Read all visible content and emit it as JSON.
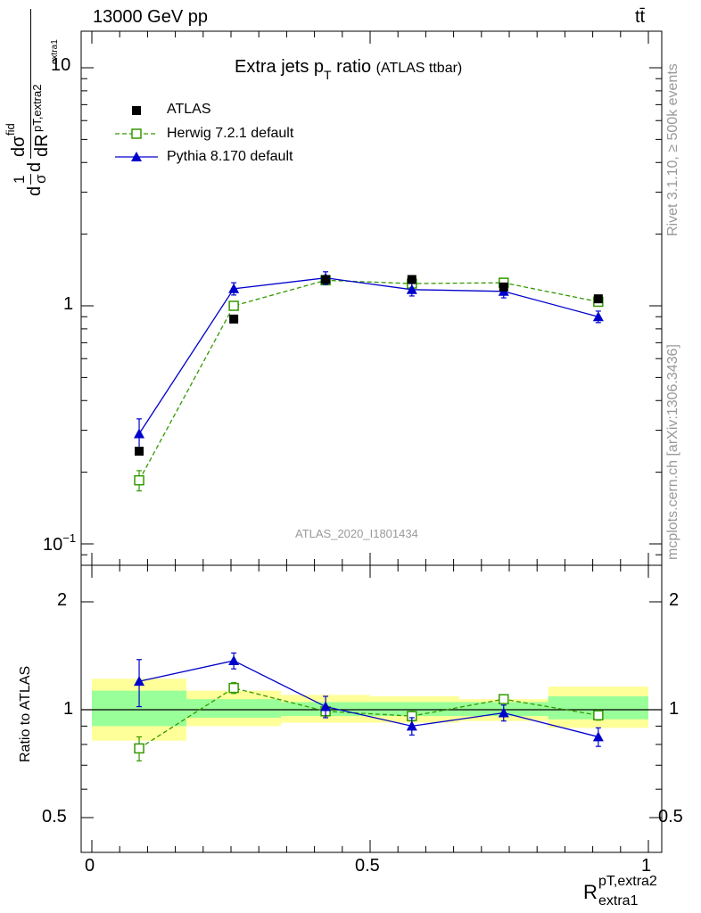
{
  "header": {
    "energy_label": "13000 GeV pp",
    "process_label": "tt̄"
  },
  "side": {
    "rivet": "Rivet 3.1.10, ≥ 500k events",
    "mcplots": "mcplots.cern.ch [arXiv:1306.3436]"
  },
  "analysis_label": "ATLAS_2020_I1801434",
  "colors": {
    "data": "#000000",
    "herwig": "#339900",
    "pythia": "#0000cc",
    "band_inner": "#99ff99",
    "band_outer": "#ffff99",
    "watermark": "#999999"
  },
  "chart_data": [
    {
      "type": "scatter",
      "title_main": "Extra jets p",
      "title_sub": "T",
      "title_tail": " ratio",
      "title_paren": "(ATLAS ttbar)",
      "ylabel_parts": [
        "d",
        "1",
        "σ",
        "d",
        "dσ",
        "fid",
        "dR",
        "pT,extra2",
        "extra1"
      ],
      "yscale": "log",
      "ylim": [
        0.085,
        14
      ],
      "yticks": [
        {
          "v": 10,
          "label": "10"
        },
        {
          "v": 1,
          "label": "1"
        },
        {
          "v": 0.1,
          "label": "10",
          "sup": "−1"
        }
      ],
      "xlim": [
        0,
        1
      ],
      "legend_position": "top-left",
      "legend": [
        "ATLAS",
        "Herwig 7.2.1 default",
        "Pythia 8.170 default"
      ],
      "x": [
        0.085,
        0.255,
        0.42,
        0.575,
        0.74,
        0.91
      ],
      "series": [
        {
          "name": "ATLAS",
          "marker": "square",
          "values": [
            0.245,
            0.88,
            1.29,
            1.29,
            1.2,
            1.07
          ],
          "err": [
            0,
            0,
            0,
            0,
            0,
            0
          ]
        },
        {
          "name": "Herwig 7.2.1 default",
          "marker": "open-square",
          "line": "dashed",
          "values": [
            0.185,
            1.0,
            1.28,
            1.24,
            1.25,
            1.04
          ],
          "err": [
            0.018,
            0.03,
            0.04,
            0.04,
            0.04,
            0.03
          ]
        },
        {
          "name": "Pythia 8.170 default",
          "marker": "triangle",
          "line": "solid",
          "values": [
            0.29,
            1.18,
            1.31,
            1.17,
            1.15,
            0.9
          ],
          "err": [
            0.045,
            0.07,
            0.08,
            0.07,
            0.07,
            0.05
          ]
        }
      ]
    },
    {
      "type": "scatter",
      "ylabel": "Ratio to ATLAS",
      "xlabel_main": "R",
      "xlabel_sup": "pT,extra2",
      "xlabel_sub": "extra1",
      "yscale": "log",
      "ylim": [
        0.4,
        2.5
      ],
      "yticks": [
        {
          "v": 2,
          "label": "2"
        },
        {
          "v": 1,
          "label": "1"
        },
        {
          "v": 0.5,
          "label": "0.5"
        }
      ],
      "xlim": [
        0,
        1
      ],
      "xticks": [
        {
          "v": 0,
          "label": "0"
        },
        {
          "v": 0.5,
          "label": "0.5"
        },
        {
          "v": 1,
          "label": "1"
        }
      ],
      "bins": [
        0,
        0.17,
        0.34,
        0.5,
        0.66,
        0.82,
        1.0
      ],
      "band_inner": [
        [
          0.9,
          1.13
        ],
        [
          0.95,
          1.07
        ],
        [
          0.96,
          1.05
        ],
        [
          0.96,
          1.05
        ],
        [
          0.96,
          1.05
        ],
        [
          0.94,
          1.09
        ]
      ],
      "band_outer": [
        [
          0.82,
          1.22
        ],
        [
          0.9,
          1.13
        ],
        [
          0.92,
          1.1
        ],
        [
          0.92,
          1.09
        ],
        [
          0.93,
          1.07
        ],
        [
          0.89,
          1.16
        ]
      ],
      "x": [
        0.085,
        0.255,
        0.42,
        0.575,
        0.74,
        0.91
      ],
      "series": [
        {
          "name": "Herwig 7.2.1 default",
          "marker": "open-square",
          "line": "dashed",
          "values": [
            0.78,
            1.15,
            0.99,
            0.96,
            1.07,
            0.965
          ],
          "err": [
            0.06,
            0.04,
            0.03,
            0.03,
            0.03,
            0.03
          ]
        },
        {
          "name": "Pythia 8.170 default",
          "marker": "triangle",
          "line": "solid",
          "values": [
            1.2,
            1.37,
            1.02,
            0.9,
            0.98,
            0.84
          ],
          "err": [
            0.18,
            0.07,
            0.07,
            0.05,
            0.05,
            0.05
          ]
        }
      ]
    }
  ]
}
